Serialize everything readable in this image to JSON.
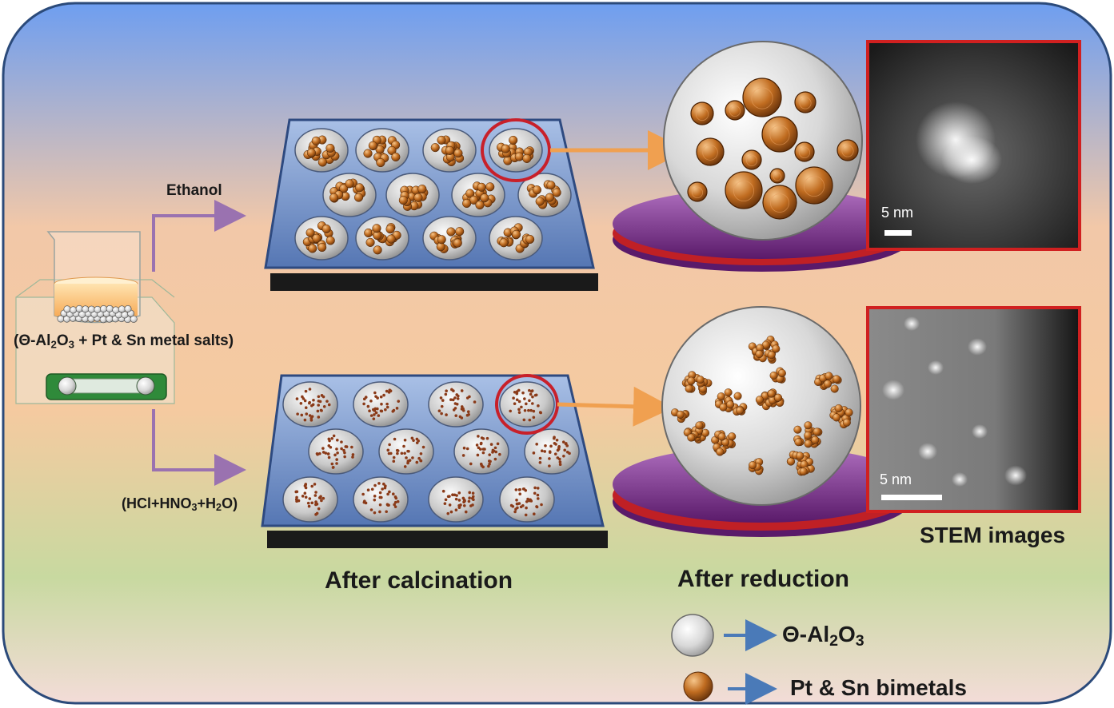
{
  "labels": {
    "ethanol": "Ethanol",
    "solvent_acid": [
      "(HCl+HNO",
      "3",
      "+H",
      "2",
      "O)"
    ],
    "beaker_salts": [
      "(Θ-Al",
      "2",
      "O",
      "3",
      " + Pt & Sn metal salts)"
    ],
    "after_calcination": "After calcination",
    "after_reduction": "After reduction",
    "stem_images": "STEM images",
    "scale_top": "5 nm",
    "scale_bottom": "5 nm"
  },
  "legend": {
    "support": [
      "Θ-Al",
      "2",
      "O",
      "3"
    ],
    "metal": "Pt & Sn bimetals"
  },
  "icons": {
    "support": "alumina-sphere-icon",
    "metal": "bimetal-particle-icon",
    "arrow": "right-arrow-icon"
  },
  "colors": {
    "frame_border": "#2b4a7a",
    "bg_top": "#6e9ef0",
    "bg_mid": "#f2c8a8",
    "bg_bottom": "#c8d9a0",
    "tray": "#6b8fc9",
    "highlight": "#c8202a",
    "orange_arrow": "#f0a050",
    "purple_arrow": "#9a72b0",
    "metal": "#b8651c",
    "disk": "#7a2a8a"
  }
}
